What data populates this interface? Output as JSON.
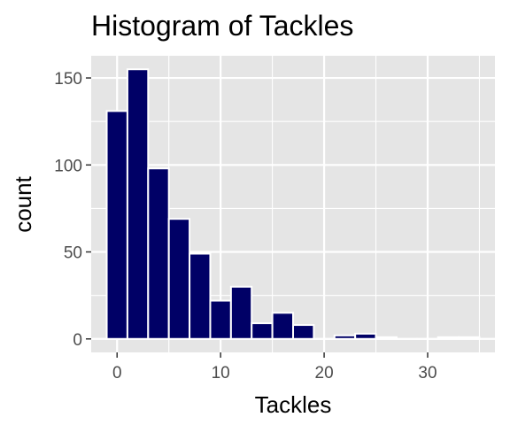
{
  "chart_data": {
    "type": "histogram",
    "title": "Histogram of Tackles",
    "xlabel": "Tackles",
    "ylabel": "count",
    "xlim": [
      -2.5,
      36.5
    ],
    "ylim": [
      -7.75,
      162.75
    ],
    "bin_width": 2,
    "x_ticks": [
      0,
      10,
      20,
      30
    ],
    "y_ticks": [
      0,
      50,
      100,
      150
    ],
    "x_minor_ticks": [
      -5,
      5,
      15,
      25,
      35
    ],
    "y_minor_ticks": [
      25,
      75,
      125
    ],
    "grid": true,
    "bins": [
      {
        "x": 0,
        "count": 131
      },
      {
        "x": 2,
        "count": 155
      },
      {
        "x": 4,
        "count": 98
      },
      {
        "x": 6,
        "count": 69
      },
      {
        "x": 8,
        "count": 49
      },
      {
        "x": 10,
        "count": 22
      },
      {
        "x": 12,
        "count": 30
      },
      {
        "x": 14,
        "count": 9
      },
      {
        "x": 16,
        "count": 15
      },
      {
        "x": 18,
        "count": 8
      },
      {
        "x": 20,
        "count": 0
      },
      {
        "x": 22,
        "count": 2
      },
      {
        "x": 24,
        "count": 3
      },
      {
        "x": 26,
        "count": 1
      },
      {
        "x": 28,
        "count": 0
      },
      {
        "x": 30,
        "count": 0
      },
      {
        "x": 32,
        "count": 1
      },
      {
        "x": 34,
        "count": 1
      }
    ],
    "colors": {
      "fill": "#000066",
      "outline": "#ffffff",
      "panel": "#e5e5e5",
      "grid": "#ffffff",
      "tick": "#333333"
    }
  }
}
